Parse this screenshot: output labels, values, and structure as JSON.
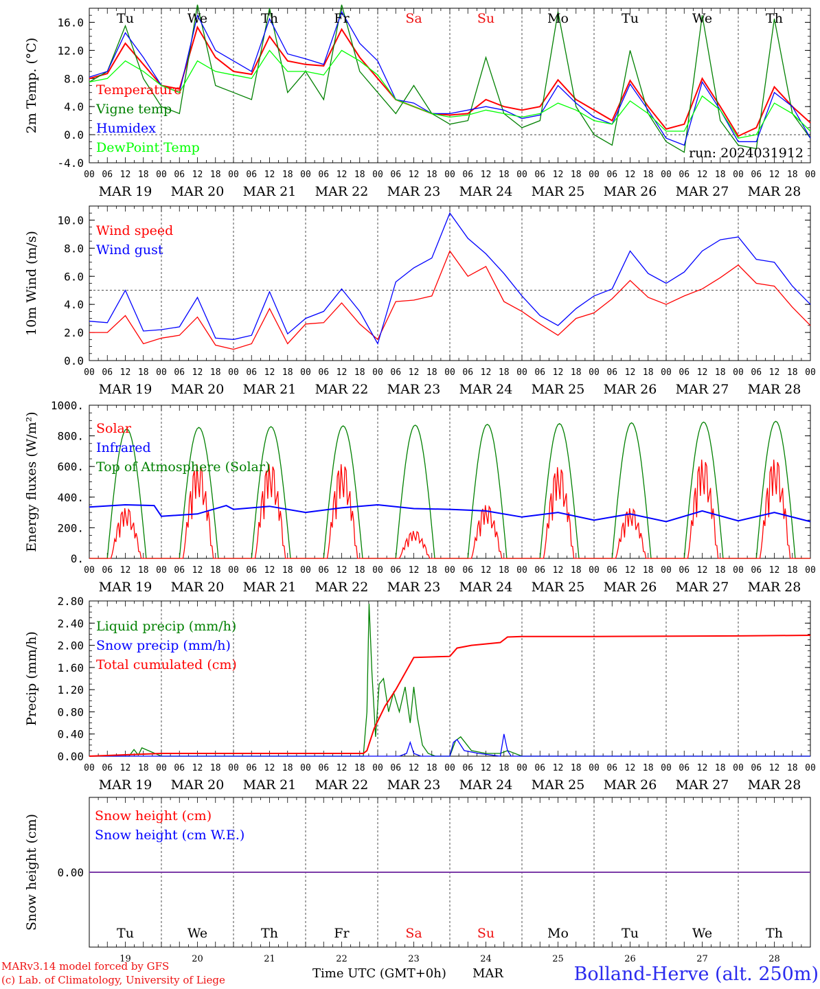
{
  "days": [
    "MAR 19",
    "MAR 20",
    "MAR 21",
    "MAR 22",
    "MAR 23",
    "MAR 24",
    "MAR 25",
    "MAR 26",
    "MAR 27",
    "MAR 28"
  ],
  "weekdays": [
    "Tu",
    "We",
    "Th",
    "Fr",
    "Sa",
    "Su",
    "Mo",
    "Tu",
    "We",
    "Th"
  ],
  "day_numbers": [
    "19",
    "20",
    "21",
    "22",
    "23",
    "24",
    "25",
    "26",
    "27",
    "28"
  ],
  "hour_ticks": [
    "00",
    "06",
    "12",
    "18"
  ],
  "end_tick": "00",
  "weekend_color": "#ee1111",
  "weekday_color": "#000000",
  "run_label": "run: 2024031912",
  "footer": {
    "model": "MARv3.14 model forced by GFS",
    "lab": "(c) Lab. of Climatology, University of Liege",
    "time_label": "Time UTC (GMT+0h)",
    "month": "MAR",
    "station": "Bolland-Herve (alt. 250m)"
  },
  "chart_data": [
    {
      "type": "line",
      "ylabel": "2m Temp. (°C)",
      "ylim": [
        -4,
        18
      ],
      "yticks": [
        "-4.0",
        "0.0",
        "4.0",
        "8.0",
        "12.0",
        "16.0"
      ],
      "ytick_values": [
        -4,
        0,
        4,
        8,
        12,
        16
      ],
      "ref_line": 0,
      "x_unit": "days since MAR 19 00 UTC",
      "series": [
        {
          "name": "Temperature",
          "color": "#ff0000",
          "x": [
            0,
            0.25,
            0.5,
            0.75,
            1,
            1.25,
            1.5,
            1.75,
            2,
            2.25,
            2.5,
            2.75,
            3,
            3.25,
            3.5,
            3.75,
            4,
            4.25,
            4.5,
            4.75,
            5,
            5.25,
            5.5,
            5.75,
            6,
            6.25,
            6.5,
            6.75,
            7,
            7.25,
            7.5,
            7.75,
            8,
            8.25,
            8.5,
            8.75,
            9,
            9.25,
            9.5,
            9.75,
            10
          ],
          "y": [
            8,
            8.7,
            13,
            10,
            7,
            6.5,
            15.3,
            11,
            9,
            8.6,
            14,
            10.5,
            10,
            9.8,
            15,
            11,
            8,
            5,
            4,
            3,
            2.8,
            3,
            5,
            4,
            3.5,
            4,
            7.8,
            5,
            3.5,
            2,
            7.7,
            4,
            0.8,
            1.5,
            8,
            4,
            -0.2,
            1,
            6.8,
            4,
            1.7
          ]
        },
        {
          "name": "Vigne temp",
          "color": "#008000",
          "x": [
            0,
            0.25,
            0.5,
            0.75,
            1,
            1.25,
            1.5,
            1.75,
            2,
            2.25,
            2.5,
            2.75,
            3,
            3.25,
            3.5,
            3.75,
            4,
            4.25,
            4.5,
            4.75,
            5,
            5.25,
            5.5,
            5.75,
            6,
            6.25,
            6.5,
            6.75,
            7,
            7.25,
            7.5,
            7.75,
            8,
            8.25,
            8.5,
            8.75,
            9,
            9.25,
            9.5,
            9.75,
            10
          ],
          "y": [
            7.5,
            9,
            15.5,
            8,
            4,
            3,
            18.5,
            7,
            6,
            5,
            18,
            6,
            9,
            5,
            18.5,
            9,
            6,
            3,
            7,
            3,
            1.5,
            2,
            11,
            3,
            1,
            2,
            17.5,
            4,
            0,
            -1.5,
            12,
            3,
            -1,
            -2.5,
            17,
            2,
            -1.5,
            -2,
            16.5,
            3,
            -0.5
          ]
        },
        {
          "name": "Humidex",
          "color": "#0000ff",
          "x": [
            0,
            0.25,
            0.5,
            0.75,
            1,
            1.25,
            1.5,
            1.75,
            2,
            2.25,
            2.5,
            2.75,
            3,
            3.25,
            3.5,
            3.75,
            4,
            4.25,
            4.5,
            4.75,
            5,
            5.25,
            5.5,
            5.75,
            6,
            6.25,
            6.5,
            6.75,
            7,
            7.25,
            7.5,
            7.75,
            8,
            8.25,
            8.5,
            8.75,
            9,
            9.25,
            9.5,
            9.75,
            10
          ],
          "y": [
            8.2,
            9,
            14.5,
            11,
            7,
            6,
            17,
            12,
            10.5,
            9,
            16.5,
            11.5,
            10.8,
            10,
            17.5,
            13,
            10.5,
            5,
            4.5,
            3,
            3,
            3.5,
            4,
            3.5,
            2.3,
            2.8,
            7,
            4.5,
            2.5,
            1.5,
            7.2,
            3.5,
            -0.5,
            -1.5,
            7.5,
            3.5,
            -1,
            -1,
            6,
            4,
            -0.5
          ]
        },
        {
          "name": "DewPoint Temp",
          "color": "#00ff00",
          "x": [
            0,
            0.25,
            0.5,
            0.75,
            1,
            1.25,
            1.5,
            1.75,
            2,
            2.25,
            2.5,
            2.75,
            3,
            3.25,
            3.5,
            3.75,
            4,
            4.25,
            4.5,
            4.75,
            5,
            5.25,
            5.5,
            5.75,
            6,
            6.25,
            6.5,
            6.75,
            7,
            7.25,
            7.5,
            7.75,
            8,
            8.25,
            8.5,
            8.75,
            9,
            9.25,
            9.5,
            9.75,
            10
          ],
          "y": [
            7.5,
            8,
            10.5,
            9,
            7,
            6,
            10.5,
            9,
            8.5,
            8,
            12,
            9,
            9,
            8.5,
            12,
            10.5,
            8.5,
            5,
            4,
            3,
            2.5,
            2.8,
            3.5,
            3,
            2.5,
            3,
            4.5,
            3.5,
            2,
            1.5,
            4.8,
            3,
            0.5,
            0.5,
            5.5,
            3.5,
            -0.5,
            0,
            4.5,
            3,
            0.5
          ]
        }
      ]
    },
    {
      "type": "line",
      "ylabel": "10m Wind (m/s)",
      "ylim": [
        0,
        11
      ],
      "yticks": [
        "0.0",
        "2.0",
        "4.0",
        "6.0",
        "8.0",
        "10.0"
      ],
      "ytick_values": [
        0,
        2,
        4,
        6,
        8,
        10
      ],
      "ref_line": 5,
      "x_unit": "days since MAR 19 00 UTC",
      "series": [
        {
          "name": "Wind speed",
          "color": "#ff0000",
          "x": [
            0,
            0.25,
            0.5,
            0.75,
            1,
            1.25,
            1.5,
            1.75,
            2,
            2.25,
            2.5,
            2.75,
            3,
            3.25,
            3.5,
            3.75,
            4,
            4.25,
            4.5,
            4.75,
            5,
            5.25,
            5.5,
            5.75,
            6,
            6.25,
            6.5,
            6.75,
            7,
            7.25,
            7.5,
            7.75,
            8,
            8.25,
            8.5,
            8.75,
            9,
            9.25,
            9.5,
            9.75,
            10
          ],
          "y": [
            2,
            2,
            3.2,
            1.2,
            1.6,
            1.8,
            3.1,
            1.1,
            0.8,
            1.2,
            3.7,
            1.2,
            2.6,
            2.7,
            4.1,
            2.6,
            1.5,
            4.2,
            4.3,
            4.6,
            7.8,
            6,
            6.7,
            4.2,
            3.5,
            2.6,
            1.8,
            3,
            3.4,
            4.4,
            5.7,
            4.5,
            4,
            4.6,
            5.1,
            5.9,
            6.8,
            5.5,
            5.3,
            3.8,
            2.5
          ]
        },
        {
          "name": "Wind gust",
          "color": "#0000ff",
          "x": [
            0,
            0.25,
            0.5,
            0.75,
            1,
            1.25,
            1.5,
            1.75,
            2,
            2.25,
            2.5,
            2.75,
            3,
            3.25,
            3.5,
            3.75,
            4,
            4.25,
            4.5,
            4.75,
            5,
            5.25,
            5.5,
            5.75,
            6,
            6.25,
            6.5,
            6.75,
            7,
            7.25,
            7.5,
            7.75,
            8,
            8.25,
            8.5,
            8.75,
            9,
            9.25,
            9.5,
            9.75,
            10
          ],
          "y": [
            2.8,
            2.7,
            5,
            2.1,
            2.2,
            2.4,
            4.5,
            1.6,
            1.5,
            1.8,
            4.9,
            1.9,
            3,
            3.5,
            5.1,
            3.5,
            1.2,
            5.6,
            6.6,
            7.3,
            10.5,
            8.7,
            7.6,
            6.2,
            4.6,
            3.2,
            2.5,
            3.7,
            4.6,
            5.1,
            7.8,
            6.2,
            5.5,
            6.3,
            7.8,
            8.6,
            8.8,
            7.2,
            7,
            5.3,
            4
          ]
        }
      ]
    },
    {
      "type": "line",
      "ylabel": "Energy fluxes (W/m²)",
      "ylim": [
        0,
        1000
      ],
      "yticks": [
        "0.",
        "200.",
        "400.",
        "600.",
        "800.",
        "1000."
      ],
      "ytick_values": [
        0,
        200,
        400,
        600,
        800,
        1000
      ],
      "x_unit": "days since MAR 19 00 UTC",
      "series": [
        {
          "name": "Top of Atmosphere (Solar)",
          "color": "#008000",
          "peaks": [
            845,
            855,
            860,
            865,
            870,
            875,
            880,
            885,
            890,
            895
          ]
        },
        {
          "name": "Solar",
          "color": "#ff0000",
          "peaks": [
            330,
            620,
            620,
            620,
            180,
            350,
            600,
            330,
            650,
            650
          ]
        },
        {
          "name": "Infrared",
          "color": "#0000ff",
          "x": [
            0,
            0.5,
            0.9,
            1,
            1.5,
            1.9,
            2,
            2.5,
            3,
            3.5,
            4,
            4.5,
            5,
            5.5,
            6,
            6.5,
            7,
            7.5,
            8,
            8.5,
            9,
            9.5,
            10
          ],
          "y": [
            335,
            350,
            345,
            275,
            290,
            345,
            320,
            340,
            300,
            330,
            350,
            325,
            320,
            310,
            270,
            300,
            250,
            290,
            240,
            310,
            245,
            300,
            240
          ]
        }
      ]
    },
    {
      "type": "line",
      "ylabel": "Precip (mm/h)",
      "ylim": [
        0,
        2.8
      ],
      "yticks": [
        "0.00",
        "0.40",
        "0.80",
        "1.20",
        "1.60",
        "2.00",
        "2.40",
        "2.80"
      ],
      "ytick_values": [
        0,
        0.4,
        0.8,
        1.2,
        1.6,
        2.0,
        2.4,
        2.8
      ],
      "x_unit": "days since MAR 19 00 UTC",
      "series": [
        {
          "name": "Liquid precip (mm/h)",
          "color": "#008000",
          "x": [
            0,
            0.55,
            0.62,
            0.68,
            0.73,
            1,
            3.8,
            3.85,
            3.88,
            3.92,
            3.97,
            4.02,
            4.08,
            4.15,
            4.22,
            4.3,
            4.38,
            4.45,
            4.5,
            4.55,
            4.62,
            4.7,
            4.8,
            5,
            5.08,
            5.15,
            5.3,
            5.5,
            5.7,
            5.8,
            6,
            10
          ],
          "y": [
            0,
            0,
            0.12,
            0.02,
            0.15,
            0,
            0,
            0.8,
            2.75,
            1.5,
            0.35,
            1.3,
            1.4,
            0.8,
            1.15,
            0.8,
            1.25,
            0.6,
            1.25,
            0.7,
            0.2,
            0.05,
            0,
            0,
            0.28,
            0.35,
            0.1,
            0.05,
            0.05,
            0.1,
            0,
            0
          ]
        },
        {
          "name": "Snow precip (mm/h)",
          "color": "#0000ff",
          "x": [
            0,
            4.3,
            4.4,
            4.45,
            4.5,
            4.6,
            5,
            5.05,
            5.1,
            5.2,
            5.4,
            5.7,
            5.75,
            5.8,
            5.85,
            6,
            10
          ],
          "y": [
            0,
            0,
            0.05,
            0.25,
            0.05,
            0,
            0,
            0.25,
            0.3,
            0.1,
            0.05,
            0,
            0.4,
            0.1,
            0,
            0,
            0
          ]
        },
        {
          "name": "Total cumulated (cm)",
          "color": "#ff0000",
          "x": [
            0,
            1,
            3.8,
            3.85,
            3.95,
            4.1,
            4.25,
            4.5,
            5,
            5.1,
            5.3,
            5.7,
            5.8,
            6,
            7,
            9,
            10
          ],
          "y": [
            0,
            0.05,
            0.05,
            0.1,
            0.5,
            0.9,
            1.2,
            1.78,
            1.8,
            1.95,
            2.0,
            2.05,
            2.15,
            2.16,
            2.16,
            2.17,
            2.18
          ]
        }
      ]
    },
    {
      "type": "line",
      "ylabel": "Snow height (cm)",
      "ylim": [
        -1,
        1
      ],
      "yticks": [
        "0.00"
      ],
      "ytick_values": [
        0
      ],
      "x_unit": "days since MAR 19 00 UTC",
      "series": [
        {
          "name": "Snow height (cm)",
          "color": "#ff0000",
          "x": [
            0,
            10
          ],
          "y": [
            0,
            0
          ]
        },
        {
          "name": "Snow height (cm W.E.)",
          "color": "#0000ff",
          "x": [
            0,
            10
          ],
          "y": [
            0,
            0
          ]
        }
      ]
    }
  ]
}
